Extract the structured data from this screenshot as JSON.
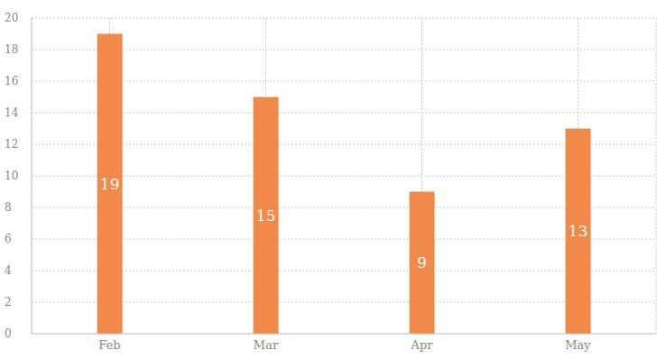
{
  "chart_data": {
    "type": "bar",
    "categories": [
      "Feb",
      "Mar",
      "Apr",
      "May"
    ],
    "values": [
      19,
      15,
      9,
      13
    ],
    "color": "#f0894a",
    "ylim": [
      0,
      20
    ],
    "yticks": [
      0,
      2,
      4,
      6,
      8,
      10,
      12,
      14,
      16,
      18,
      20
    ],
    "grid": true,
    "data_labels": true
  }
}
